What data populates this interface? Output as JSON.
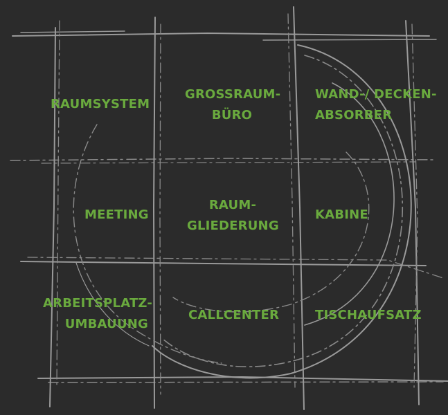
{
  "grid": {
    "cells": [
      {
        "id": "raumsystem",
        "lines": [
          "RAUMSYSTEM"
        ]
      },
      {
        "id": "grossraum-buero",
        "lines": [
          "GROSSRAUM-",
          "BÜRO"
        ]
      },
      {
        "id": "wand-decken-absorber",
        "lines": [
          "WAND-/ DECKEN-",
          "ABSORBER"
        ]
      },
      {
        "id": "meeting",
        "lines": [
          "MEETING"
        ]
      },
      {
        "id": "raumgliederung",
        "lines": [
          "RAUM-",
          "GLIEDERUNG"
        ]
      },
      {
        "id": "kabine",
        "lines": [
          "KABINE"
        ]
      },
      {
        "id": "arbeitsplatz-umbauung",
        "lines": [
          "ARBEITSPLATZ-",
          "UMBAUUNG"
        ]
      },
      {
        "id": "callcenter",
        "lines": [
          "CALLCENTER"
        ]
      },
      {
        "id": "tischaufsatz",
        "lines": [
          "TISCHAUFSATZ"
        ]
      }
    ]
  },
  "colors": {
    "background": "#2b2b2b",
    "sketch_lines": "#9a9a9a",
    "label_green": "#6aaa3e"
  }
}
